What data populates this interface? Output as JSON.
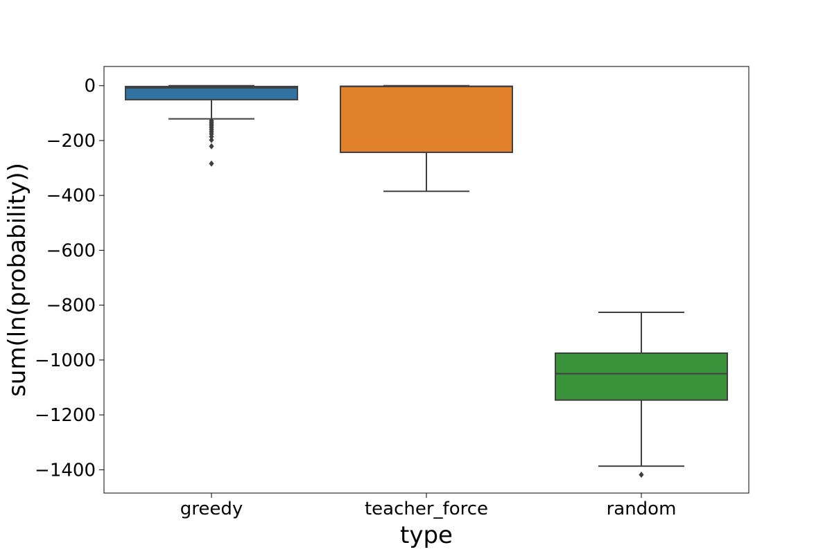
{
  "chart_data": {
    "type": "box",
    "title": "",
    "xlabel": "type",
    "ylabel": "sum(ln(probability))",
    "ylim": [
      -1485,
      70
    ],
    "yticks": [
      0,
      -200,
      -400,
      -600,
      -800,
      -1000,
      -1200,
      -1400
    ],
    "ytick_labels": [
      "0",
      "−200",
      "−400",
      "−600",
      "−800",
      "−1000",
      "−1200",
      "−1400"
    ],
    "grid": false,
    "legend": "none",
    "categories": [
      "greedy",
      "teacher_force",
      "random"
    ],
    "boxes": [
      {
        "category": "greedy",
        "color": "#3274a1",
        "whisker_low": -121,
        "q1": -51,
        "median": -8,
        "q3": -3,
        "whisker_high": 0,
        "outliers": [
          -128,
          -134,
          -140,
          -146,
          -153,
          -160,
          -168,
          -176,
          -186,
          -198,
          -221,
          -284
        ]
      },
      {
        "category": "teacher_force",
        "color": "#e1812c",
        "whisker_low": -385,
        "q1": -243,
        "median": -3,
        "q3": -2,
        "whisker_high": 0,
        "outliers": []
      },
      {
        "category": "random",
        "color": "#3a923a",
        "whisker_low": -1387,
        "q1": -1146,
        "median": -1050,
        "q3": -975,
        "whisker_high": -826,
        "outliers": [
          -1418
        ]
      }
    ]
  }
}
